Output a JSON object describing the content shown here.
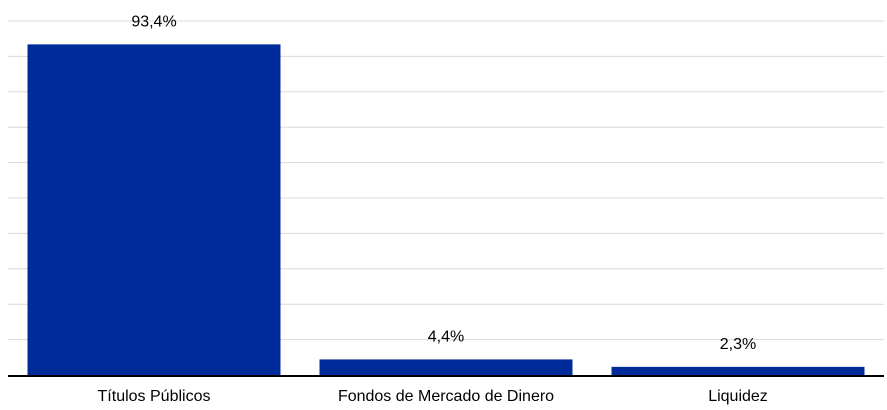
{
  "chart_data": {
    "type": "bar",
    "categories": [
      "Títulos Públicos",
      "Fondos de Mercado de Dinero",
      "Liquidez"
    ],
    "values": [
      93.4,
      4.4,
      2.3
    ],
    "data_labels": [
      "93,4%",
      "4,4%",
      "2,3%"
    ],
    "title": "",
    "xlabel": "",
    "ylabel": "",
    "ylim": [
      0,
      100
    ],
    "grid": true,
    "legend": "none",
    "colors": {
      "bar": "#002b9a",
      "grid": "#d9d9d9",
      "axis": "#000000",
      "text": "#000000"
    }
  }
}
